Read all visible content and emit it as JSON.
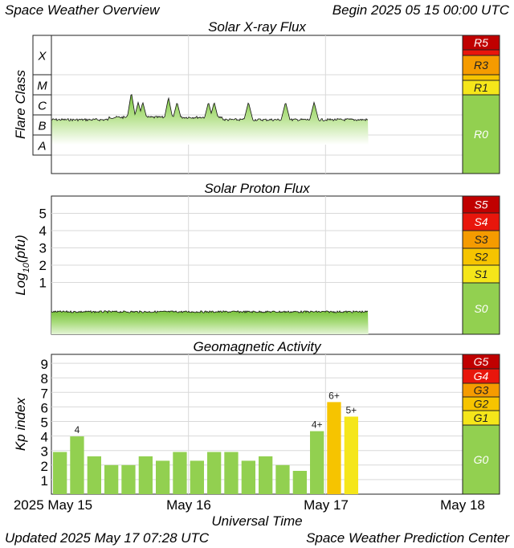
{
  "header": {
    "title": "Space Weather Overview",
    "begin": "Begin 2025 05 15 00:00 UTC"
  },
  "footer": {
    "updated": "Updated 2025 May 17 07:28 UTC",
    "center": "Space Weather Prediction Center"
  },
  "x_axis": {
    "label": "Universal Time",
    "ticks": [
      "2025 May 15",
      "May 16",
      "May 17",
      "May 18"
    ]
  },
  "colors": {
    "green": "#92d050",
    "yellow": "#f5e61a",
    "amber": "#f6c400",
    "orange": "#f59b00",
    "red": "#e8160c",
    "darkred": "#c00000",
    "grid": "#d9d9d9",
    "plot_bg": "#ffffff"
  },
  "chart_data": [
    {
      "type": "area",
      "title": "Solar X-ray Flux",
      "ylabel": "Flare Class",
      "class_labels": [
        "X",
        "M",
        "C",
        "B",
        "A"
      ],
      "y_scale": "log",
      "x_unit": "hours since 2025-05-15 00:00 UTC",
      "x_range": [
        0,
        72
      ],
      "data_end_hour": 55.5,
      "baseline_class": "B",
      "spikes": [
        {
          "hour": 14.0,
          "level": "C"
        },
        {
          "hour": 15.2,
          "level": "C"
        },
        {
          "hour": 16.0,
          "level": "C"
        },
        {
          "hour": 20.5,
          "level": "C"
        },
        {
          "hour": 22.0,
          "level": "C"
        },
        {
          "hour": 27.5,
          "level": "C"
        },
        {
          "hour": 28.5,
          "level": "C"
        },
        {
          "hour": 34.5,
          "level": "C"
        },
        {
          "hour": 41.0,
          "level": "C"
        },
        {
          "hour": 46.0,
          "level": "C"
        }
      ],
      "scale": [
        {
          "label": "R5",
          "color": "darkred"
        },
        {
          "label": "R3",
          "color": "orange"
        },
        {
          "label": "R1",
          "color": "yellow"
        },
        {
          "label": "R0",
          "color": "green"
        }
      ]
    },
    {
      "type": "area",
      "title": "Solar Proton Flux",
      "ylabel": "Log10(pfu)",
      "ylabel_main": "Log",
      "ylabel_sub": "10",
      "ylabel_tail": "(pfu)",
      "yticks": [
        "1",
        "2",
        "3",
        "4",
        "5"
      ],
      "y_values": [
        1,
        2,
        3,
        4,
        5
      ],
      "x_range": [
        0,
        72
      ],
      "data_end_hour": 55.5,
      "level_log10_pfu": -0.6,
      "scale": [
        {
          "label": "S5",
          "color": "darkred"
        },
        {
          "label": "S4",
          "color": "red"
        },
        {
          "label": "S3",
          "color": "orange"
        },
        {
          "label": "S2",
          "color": "amber"
        },
        {
          "label": "S1",
          "color": "yellow"
        },
        {
          "label": "S0",
          "color": "green"
        }
      ]
    },
    {
      "type": "bar",
      "title": "Geomagnetic Activity",
      "ylabel": "Kp index",
      "yticks": [
        "1",
        "2",
        "3",
        "4",
        "5",
        "6",
        "7",
        "8",
        "9"
      ],
      "ylim": [
        0,
        9
      ],
      "x_range": [
        0,
        72
      ],
      "bar_hours": 3,
      "values": [
        2.9,
        3.97,
        2.6,
        2.0,
        2.0,
        2.6,
        2.3,
        2.9,
        2.3,
        2.9,
        2.9,
        2.3,
        2.6,
        2.0,
        1.6,
        4.33,
        6.33,
        5.33
      ],
      "bar_colors": [
        "green",
        "green",
        "green",
        "green",
        "green",
        "green",
        "green",
        "green",
        "green",
        "green",
        "green",
        "green",
        "green",
        "green",
        "green",
        "green",
        "amber",
        "yellow"
      ],
      "data_labels": [
        {
          "index": 1,
          "text": "4"
        },
        {
          "index": 15,
          "text": "4+"
        },
        {
          "index": 16,
          "text": "6+"
        },
        {
          "index": 17,
          "text": "5+"
        }
      ],
      "scale": [
        {
          "label": "G5",
          "color": "darkred"
        },
        {
          "label": "G4",
          "color": "red"
        },
        {
          "label": "G3",
          "color": "orange"
        },
        {
          "label": "G2",
          "color": "amber"
        },
        {
          "label": "G1",
          "color": "yellow"
        },
        {
          "label": "G0",
          "color": "green"
        }
      ]
    }
  ]
}
